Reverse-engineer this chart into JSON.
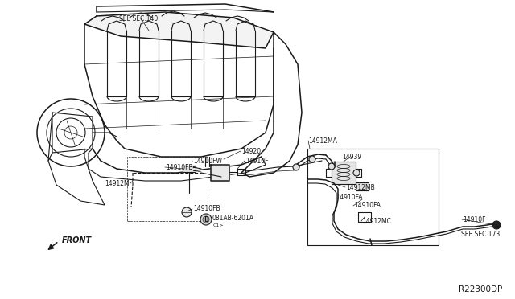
{
  "bg_color": "#ffffff",
  "line_color": "#1a1a1a",
  "fig_width": 6.4,
  "fig_height": 3.72,
  "dpi": 100,
  "diagram_id": "R22300DP",
  "labels": {
    "see_sec_140": "SEE SEC.140",
    "front": "FRONT",
    "see_sec_173": "SEE SEC.173",
    "part_14920": "14920",
    "part_14910F_top": "14910F",
    "part_14912MA": "14912MA",
    "part_14939": "14939",
    "part_14910FW": "14910FW",
    "part_14912M": "14912M",
    "part_14910FB_top": "14910FB",
    "part_14912MB": "14912MB",
    "part_L14910FA": "L4910FA",
    "part_14910FA": "14910FA",
    "part_14910FB_bot": "14910FB",
    "part_14912MC": "14912MC",
    "part_14910F_bot": "14910F",
    "part_bolt": "081AB-6201A",
    "part_bolt2": "C1>"
  },
  "font_size_small": 5.5,
  "font_size_medium": 6.5,
  "font_size_large": 7.5
}
